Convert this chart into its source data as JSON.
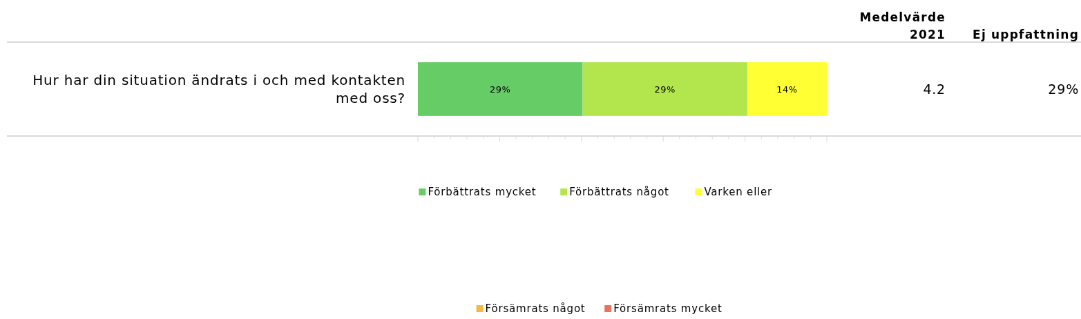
{
  "chart_data": {
    "type": "bar",
    "orientation": "horizontal",
    "stacked": true,
    "categories": [
      "Hur har din situation ändrats i och med kontakten med oss?"
    ],
    "series": [
      {
        "name": "Förbättrats mycket",
        "color": "#66cc66",
        "values": [
          29
        ],
        "value_labels": [
          "29%"
        ]
      },
      {
        "name": "Förbättrats något",
        "color": "#b3e64d",
        "values": [
          29
        ],
        "value_labels": [
          "29%"
        ]
      },
      {
        "name": "Varken eller",
        "color": "#ffff33",
        "values": [
          14
        ],
        "value_labels": [
          "14%"
        ]
      },
      {
        "name": "Försämrats något",
        "color": "#f5b942",
        "values": [
          null
        ]
      },
      {
        "name": "Försämrats mycket",
        "color": "#e8735a",
        "values": [
          null
        ]
      }
    ],
    "tick_labels": "y",
    "legend": "bottom",
    "annotations": [
      "Medelvärde\n2021",
      "Ej uppfattning",
      "4.2",
      "29%"
    ]
  }
}
